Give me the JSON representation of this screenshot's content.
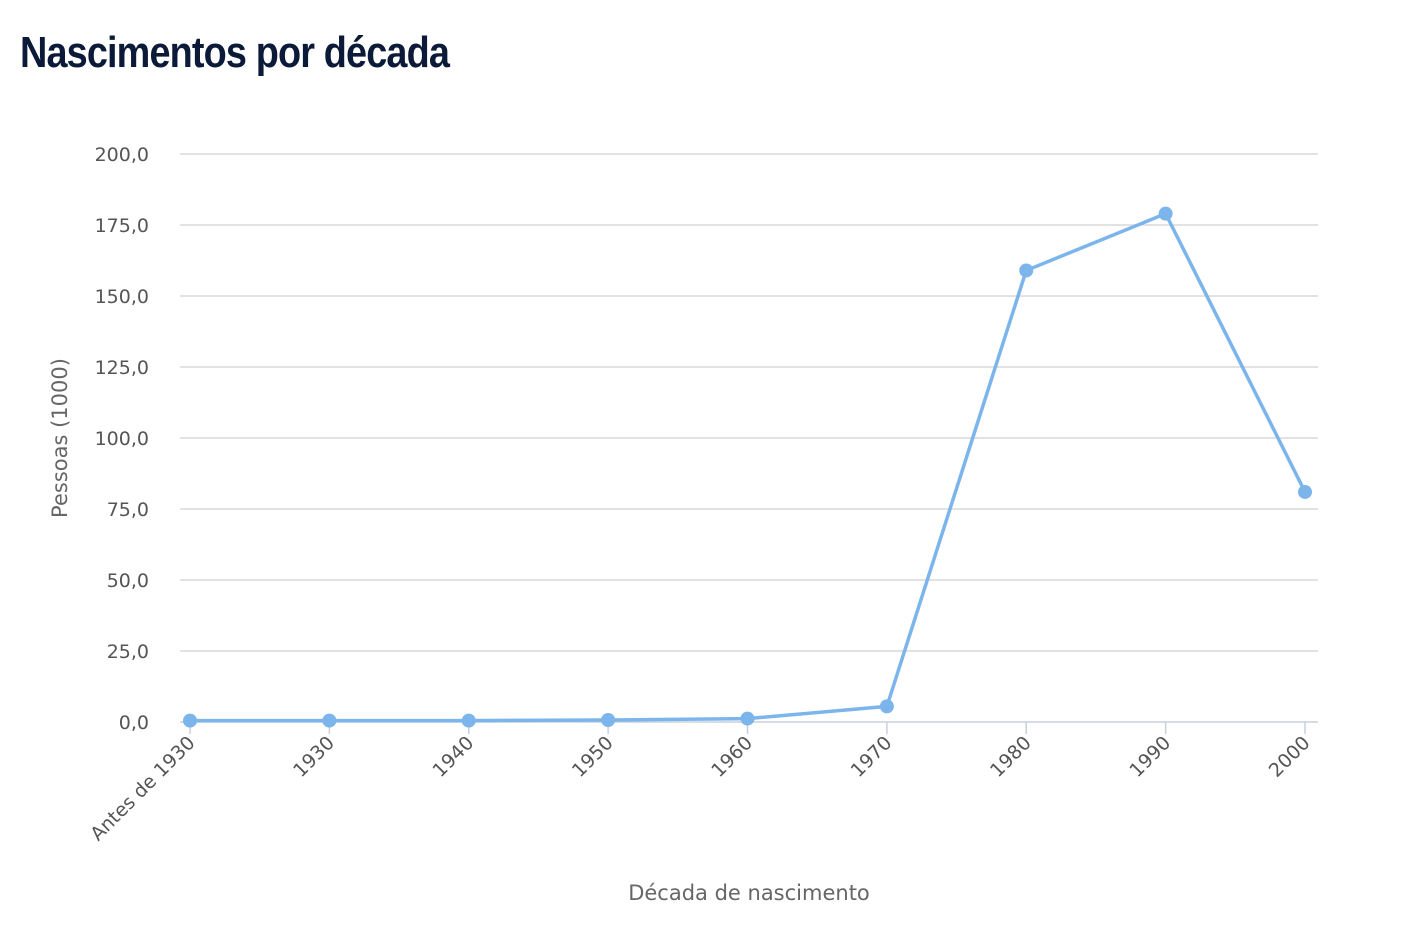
{
  "chart_data": {
    "type": "line",
    "title": "Nascimentos por década",
    "xlabel": "Década de nascimento",
    "ylabel": "Pessoas (1000)",
    "categories": [
      "Antes de 1930",
      "1930",
      "1940",
      "1950",
      "1960",
      "1970",
      "1980",
      "1990",
      "2000"
    ],
    "series": [
      {
        "values": [
          0.5,
          0.5,
          0.5,
          0.7,
          1.2,
          5.5,
          159,
          179,
          81
        ],
        "color": "#7cb5ec"
      }
    ],
    "ylim": [
      0,
      200
    ],
    "yticks": [
      "0,0",
      "25,0",
      "50,0",
      "75,0",
      "100,0",
      "125,0",
      "150,0",
      "175,0",
      "200,0"
    ],
    "grid": true,
    "legend": "none"
  }
}
